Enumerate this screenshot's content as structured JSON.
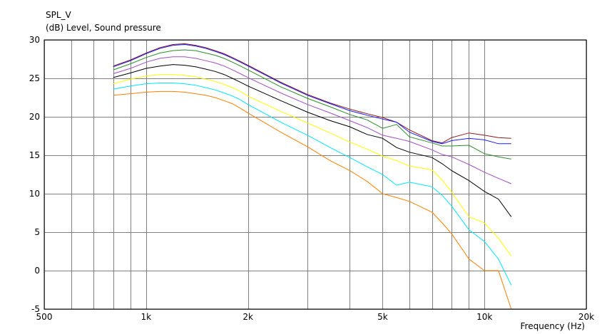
{
  "chart_data": {
    "type": "line",
    "title": "SPL_V",
    "subtitle": "(dB)  Level, Sound pressure",
    "xlabel": "Frequency  (Hz)",
    "xscale": "log",
    "xlim": [
      500,
      20000
    ],
    "ylim": [
      -5,
      30
    ],
    "grid": true,
    "x_tick_labels": [
      {
        "value": 500,
        "label": "500"
      },
      {
        "value": 1000,
        "label": "1k"
      },
      {
        "value": 2000,
        "label": "2k"
      },
      {
        "value": 5000,
        "label": "5k"
      },
      {
        "value": 10000,
        "label": "10k"
      },
      {
        "value": 20000,
        "label": "20k"
      }
    ],
    "x_gridlines": [
      500,
      600,
      700,
      800,
      900,
      1000,
      2000,
      3000,
      4000,
      5000,
      6000,
      7000,
      8000,
      9000,
      10000,
      20000
    ],
    "y_ticks": [
      -5,
      0,
      5,
      10,
      15,
      20,
      25,
      30
    ],
    "x": [
      800,
      900,
      1000,
      1100,
      1200,
      1300,
      1400,
      1500,
      1600,
      1700,
      1800,
      1900,
      2000,
      2500,
      3000,
      3500,
      4000,
      4500,
      5000,
      5500,
      6000,
      7000,
      7500,
      8000,
      9000,
      10000,
      11000,
      12000
    ],
    "series": [
      {
        "color": "#8b1a1a",
        "values": [
          26.6,
          27.4,
          28.3,
          29.0,
          29.4,
          29.5,
          29.3,
          29.0,
          28.6,
          28.2,
          27.7,
          27.2,
          26.7,
          24.5,
          22.9,
          21.8,
          21.0,
          20.4,
          19.9,
          19.3,
          18.3,
          16.9,
          16.6,
          17.3,
          17.9,
          17.6,
          17.3,
          17.2
        ]
      },
      {
        "color": "#1c1cff",
        "values": [
          26.5,
          27.3,
          28.2,
          28.9,
          29.3,
          29.4,
          29.2,
          28.9,
          28.5,
          28.1,
          27.6,
          27.1,
          26.6,
          24.4,
          22.8,
          21.7,
          20.8,
          20.2,
          19.7,
          19.3,
          18.0,
          16.8,
          16.5,
          16.9,
          17.2,
          17.0,
          16.5,
          16.5
        ]
      },
      {
        "color": "#2e8b2e",
        "values": [
          26.1,
          26.9,
          27.7,
          28.3,
          28.6,
          28.7,
          28.6,
          28.3,
          28.0,
          27.6,
          27.1,
          26.6,
          26.1,
          23.9,
          22.4,
          21.3,
          20.3,
          19.6,
          18.5,
          19.0,
          17.4,
          16.6,
          16.2,
          16.2,
          16.3,
          15.2,
          14.8,
          14.5
        ]
      },
      {
        "color": "#a04ec0",
        "values": [
          25.6,
          26.3,
          27.1,
          27.6,
          27.8,
          27.8,
          27.6,
          27.3,
          27.0,
          26.6,
          26.1,
          25.6,
          25.1,
          23.1,
          21.6,
          20.5,
          19.5,
          18.6,
          17.6,
          17.2,
          16.8,
          15.7,
          15.1,
          14.8,
          13.8,
          12.8,
          12.0,
          11.3
        ]
      },
      {
        "color": "#000000",
        "values": [
          25.1,
          25.7,
          26.3,
          26.6,
          26.8,
          26.7,
          26.5,
          26.2,
          25.9,
          25.5,
          25.0,
          24.5,
          24.0,
          22.1,
          20.6,
          19.5,
          18.7,
          17.7,
          17.2,
          16.0,
          15.4,
          14.7,
          13.9,
          13.0,
          11.7,
          10.3,
          9.3,
          7.0
        ]
      },
      {
        "color": "#ffff00",
        "values": [
          24.3,
          24.9,
          25.3,
          25.5,
          25.5,
          25.4,
          25.2,
          24.9,
          24.6,
          24.2,
          23.8,
          23.3,
          22.7,
          20.7,
          19.2,
          17.9,
          16.7,
          15.8,
          14.9,
          14.3,
          13.6,
          13.1,
          11.8,
          10.2,
          7.0,
          6.2,
          4.2,
          1.9
        ]
      },
      {
        "color": "#00e5ff",
        "values": [
          23.6,
          24.0,
          24.3,
          24.4,
          24.4,
          24.3,
          24.1,
          23.8,
          23.5,
          23.1,
          22.7,
          22.2,
          21.6,
          19.3,
          17.6,
          16.0,
          14.7,
          13.5,
          12.5,
          11.1,
          11.5,
          10.9,
          9.8,
          8.4,
          5.3,
          3.8,
          1.5,
          -1.9
        ]
      },
      {
        "color": "#ff7f00",
        "values": [
          22.8,
          23.0,
          23.2,
          23.3,
          23.3,
          23.2,
          23.0,
          22.8,
          22.5,
          22.1,
          21.7,
          21.1,
          20.5,
          18.0,
          16.1,
          14.3,
          13.0,
          11.6,
          10.0,
          9.5,
          9.0,
          7.6,
          6.2,
          4.8,
          1.5,
          0.0,
          0.0,
          -5.0
        ]
      }
    ]
  }
}
